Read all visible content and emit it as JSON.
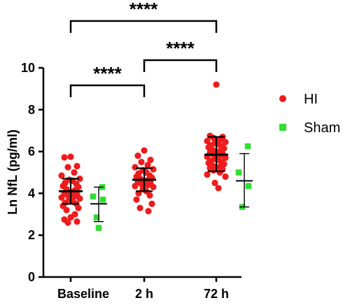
{
  "chart_data": {
    "type": "scatter",
    "ylabel": "Ln NfL (pg/ml)",
    "ylim": [
      0,
      10
    ],
    "yticks": [
      0,
      2,
      4,
      6,
      8,
      10
    ],
    "categories": [
      "Baseline",
      "2 h",
      "72 h"
    ],
    "grid": false,
    "legend_position": "right",
    "series": [
      {
        "name": "HI",
        "color": "#ee1c1c",
        "marker": "circle",
        "groups": [
          {
            "category": "Baseline",
            "mean": 4.1,
            "sd_low": 3.5,
            "sd_high": 4.7,
            "points": [
              5.75,
              5.72,
              5.3,
              5.25,
              5.0,
              4.85,
              4.7,
              4.65,
              4.6,
              4.5,
              4.45,
              4.35,
              4.3,
              4.2,
              4.15,
              4.05,
              4.0,
              3.95,
              3.9,
              3.85,
              3.8,
              3.75,
              3.7,
              3.6,
              3.55,
              3.5,
              3.4,
              3.3,
              3.2,
              3.0,
              2.85,
              2.75,
              2.65,
              2.6
            ]
          },
          {
            "category": "2 h",
            "mean": 4.65,
            "sd_low": 4.1,
            "sd_high": 5.2,
            "points": [
              6.05,
              5.8,
              5.6,
              5.5,
              5.35,
              5.25,
              5.15,
              5.1,
              5.0,
              4.95,
              4.85,
              4.8,
              4.75,
              4.7,
              4.65,
              4.6,
              4.55,
              4.5,
              4.45,
              4.4,
              4.35,
              4.3,
              4.2,
              4.1,
              4.0,
              3.9,
              3.7,
              3.5,
              3.3,
              3.15
            ]
          },
          {
            "category": "72 h",
            "mean": 5.85,
            "sd_low": 5.05,
            "sd_high": 6.7,
            "points": [
              9.2,
              6.75,
              6.7,
              6.65,
              6.55,
              6.5,
              6.45,
              6.4,
              6.35,
              6.3,
              6.25,
              6.2,
              6.15,
              6.1,
              6.05,
              6.0,
              5.95,
              5.9,
              5.85,
              5.8,
              5.75,
              5.7,
              5.65,
              5.6,
              5.55,
              5.5,
              5.45,
              5.4,
              5.35,
              5.3,
              5.25,
              5.2,
              5.15,
              5.1,
              5.0,
              4.9,
              4.8,
              4.5,
              4.25
            ]
          }
        ]
      },
      {
        "name": "Sham",
        "color": "#33dd33",
        "marker": "square",
        "groups": [
          {
            "category": "Baseline",
            "mean": 3.5,
            "sd_low": 2.65,
            "sd_high": 4.3,
            "points": [
              4.3,
              3.85,
              3.7,
              2.85,
              2.35
            ]
          },
          {
            "category": "72 h",
            "mean": 4.6,
            "sd_low": 3.35,
            "sd_high": 5.9,
            "points": [
              6.25,
              5.0,
              4.35,
              3.35
            ]
          }
        ]
      }
    ],
    "annotations": [
      {
        "from": "Baseline",
        "to": "2 h",
        "label": "****"
      },
      {
        "from": "2 h",
        "to": "72 h",
        "label": "****"
      },
      {
        "from": "Baseline",
        "to": "72 h",
        "label": "****"
      }
    ]
  }
}
